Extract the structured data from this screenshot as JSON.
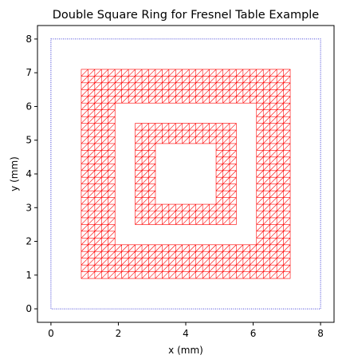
{
  "chart_data": {
    "type": "diagram",
    "title": "Double Square Ring for Fresnel Table Example",
    "xlabel": "x (mm)",
    "ylabel": "y (mm)",
    "xlim": [
      -0.4,
      8.4
    ],
    "ylim": [
      -0.4,
      8.4
    ],
    "xticks": [
      0,
      2,
      4,
      6,
      8
    ],
    "yticks": [
      0,
      1,
      2,
      3,
      4,
      5,
      6,
      7,
      8
    ],
    "boundary": {
      "x": [
        0,
        8
      ],
      "y": [
        0,
        8
      ],
      "color": "#0000cc",
      "style": "dotted"
    },
    "mesh": {
      "color": "#ff0000",
      "cell_size_mm": 0.2,
      "rings": [
        {
          "outer": [
            0.9,
            0.9,
            7.1,
            7.1
          ],
          "inner": [
            1.9,
            1.9,
            6.1,
            6.1
          ]
        },
        {
          "outer": [
            2.5,
            2.5,
            5.5,
            5.5
          ],
          "inner": [
            3.0,
            3.0,
            5.0,
            5.0
          ]
        }
      ]
    }
  }
}
